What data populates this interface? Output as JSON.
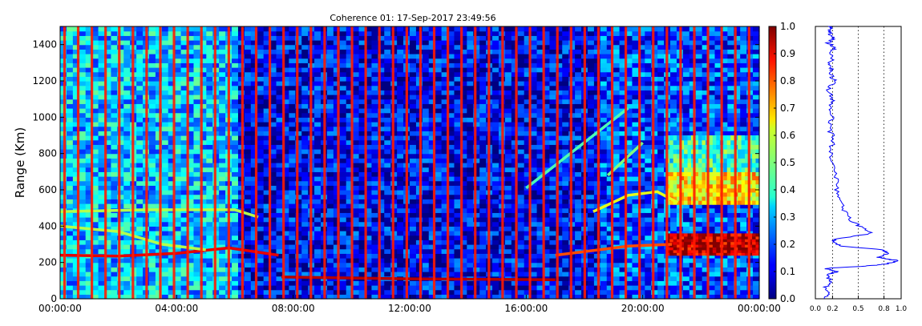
{
  "title": "Coherence 01: 17-Sep-2017 23:49:56",
  "chart_data": [
    {
      "type": "heatmap",
      "title": "Coherence 01: 17-Sep-2017 23:49:56",
      "ylabel": "Range (Km)",
      "xlabel": "",
      "x_unit": "hours",
      "xlim": [
        0,
        24
      ],
      "ylim": [
        0,
        1500
      ],
      "x_ticks": [
        0,
        4,
        8,
        12,
        16,
        20,
        24
      ],
      "x_tick_labels": [
        "00:00:00",
        "04:00:00",
        "08:00:00",
        "12:00:00",
        "16:00:00",
        "20:00:00",
        "00:00:00"
      ],
      "y_ticks": [
        0,
        200,
        400,
        600,
        800,
        1000,
        1200,
        1400
      ],
      "y_tick_labels": [
        "0",
        "200",
        "400",
        "600",
        "800",
        "1000",
        "1200",
        "1400"
      ],
      "colormap": "jet",
      "clim": [
        0,
        1
      ],
      "colorbar_ticks": [
        0.0,
        0.1,
        0.2,
        0.3,
        0.4,
        0.5,
        0.6,
        0.7,
        0.8,
        0.9,
        1.0
      ],
      "colorbar_tick_labels": [
        "0.0",
        "0.1",
        "0.2",
        "0.3",
        "0.4",
        "0.5",
        "0.6",
        "0.7",
        "0.8",
        "0.9",
        "1.0"
      ],
      "features": [
        {
          "kind": "periodic_vertical_stripes",
          "x_start": 0.15,
          "x_end": 23.9,
          "spacing_hours": 0.47,
          "value": 0.85
        },
        {
          "kind": "noisy_background",
          "x_range": [
            0,
            6.1
          ],
          "mean_value": 0.32
        },
        {
          "kind": "noisy_background",
          "x_range": [
            6.1,
            18.5
          ],
          "mean_value": 0.12
        },
        {
          "kind": "noisy_background",
          "x_range": [
            18.5,
            24
          ],
          "mean_value": 0.2
        },
        {
          "kind": "echo_line",
          "points": [
            [
              0,
              480
            ],
            [
              3,
              490
            ],
            [
              6,
              490
            ],
            [
              6.8,
              450
            ]
          ],
          "value": 0.55
        },
        {
          "kind": "echo_line",
          "points": [
            [
              0,
              240
            ],
            [
              2,
              235
            ],
            [
              4,
              250
            ],
            [
              5.8,
              280
            ],
            [
              7.5,
              240
            ]
          ],
          "value": 0.9
        },
        {
          "kind": "echo_line",
          "points": [
            [
              0,
              400
            ],
            [
              2,
              370
            ],
            [
              3.5,
              300
            ],
            [
              5,
              270
            ]
          ],
          "value": 0.55
        },
        {
          "kind": "echo_line",
          "points": [
            [
              7.6,
              120
            ],
            [
              12,
              110
            ],
            [
              17,
              105
            ]
          ],
          "value": 0.95
        },
        {
          "kind": "echo_line",
          "points": [
            [
              17,
              240
            ],
            [
              19.5,
              290
            ],
            [
              21,
              300
            ]
          ],
          "value": 0.8
        },
        {
          "kind": "echo_line",
          "points": [
            [
              18.3,
              480
            ],
            [
              19.5,
              570
            ],
            [
              20.5,
              590
            ],
            [
              21.2,
              530
            ]
          ],
          "value": 0.6
        },
        {
          "kind": "echo_line",
          "points": [
            [
              18.8,
              680
            ],
            [
              20,
              860
            ]
          ],
          "value": 0.5
        },
        {
          "kind": "echo_line",
          "points": [
            [
              16,
              610
            ],
            [
              19.5,
              1050
            ]
          ],
          "value": 0.45
        },
        {
          "kind": "blob",
          "x_range": [
            20.8,
            24
          ],
          "y_range": [
            240,
            360
          ],
          "value": 0.95
        },
        {
          "kind": "blob",
          "x_range": [
            20.8,
            24
          ],
          "y_range": [
            520,
            700
          ],
          "value": 0.65
        },
        {
          "kind": "blob",
          "x_range": [
            20.8,
            24
          ],
          "y_range": [
            700,
            900
          ],
          "value": 0.42
        }
      ]
    },
    {
      "type": "line",
      "title": "",
      "xlabel": "",
      "ylabel": "",
      "xlim": [
        0,
        1
      ],
      "ylim": [
        0,
        1500
      ],
      "x_ticks": [
        0.0,
        0.2,
        0.5,
        0.8,
        1.0
      ],
      "x_tick_labels": [
        "0.0",
        "0.2",
        "0.5",
        "0.8",
        "1.0"
      ],
      "dotted_gridlines_x": [
        0.2,
        0.5,
        0.8
      ],
      "series_color": "#0000ff",
      "x": [
        0.12,
        0.15,
        0.1,
        0.2,
        0.16,
        0.14,
        0.25,
        0.18,
        0.12,
        0.2,
        0.58,
        0.8,
        0.9,
        0.97,
        0.82,
        0.72,
        0.87,
        0.78,
        0.3,
        0.2,
        0.25,
        0.65,
        0.55,
        0.42,
        0.35,
        0.28,
        0.25,
        0.26,
        0.22,
        0.2,
        0.18,
        0.22,
        0.15,
        0.2,
        0.18,
        0.2,
        0.15,
        0.22,
        0.18,
        0.2,
        0.14,
        0.2,
        0.17,
        0.22,
        0.15,
        0.2,
        0.18,
        0.16,
        0.2,
        0.15
      ],
      "y": [
        0,
        30,
        60,
        90,
        110,
        130,
        150,
        160,
        165,
        170,
        180,
        190,
        200,
        210,
        220,
        230,
        250,
        270,
        290,
        310,
        330,
        360,
        390,
        430,
        480,
        530,
        580,
        640,
        700,
        760,
        820,
        880,
        940,
        1000,
        1050,
        1100,
        1150,
        1200,
        1230,
        1260,
        1290,
        1320,
        1350,
        1380,
        1410,
        1430,
        1450,
        1470,
        1490,
        1500
      ]
    }
  ]
}
